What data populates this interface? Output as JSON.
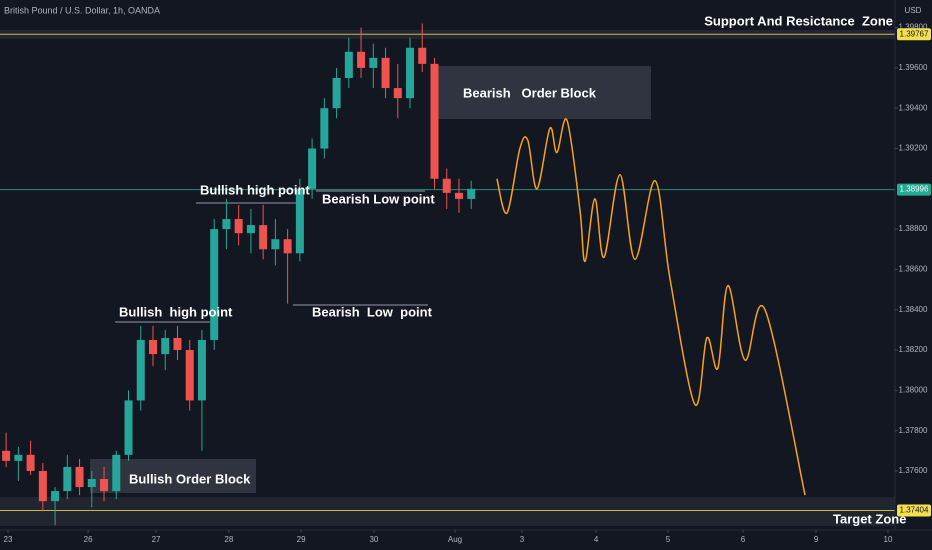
{
  "chart_data": {
    "type": "candlestick",
    "title": "British Pound / U.S. Dollar, 1h, OANDA",
    "y_axis_label": "USD",
    "up_color": "#26a69a",
    "down_color": "#ef5350",
    "x": [
      2,
      6,
      10,
      14,
      18,
      22,
      26,
      30,
      34,
      38,
      42,
      46,
      50,
      54,
      58,
      62,
      66,
      70,
      74,
      78,
      82,
      86,
      90,
      94,
      98,
      102,
      106,
      110,
      114,
      118,
      122,
      126,
      130,
      134,
      138,
      142,
      146,
      150,
      154
    ],
    "open": [
      1.377,
      1.3765,
      1.3768,
      1.376,
      1.3745,
      1.375,
      1.3762,
      1.3752,
      1.3756,
      1.375,
      1.3768,
      1.3795,
      1.3825,
      1.3818,
      1.3826,
      1.382,
      1.3795,
      1.3825,
      1.388,
      1.3885,
      1.3878,
      1.3882,
      1.387,
      1.3875,
      1.3868,
      1.39,
      1.392,
      1.394,
      1.3955,
      1.3968,
      1.396,
      1.3965,
      1.395,
      1.3945,
      1.397,
      1.3962,
      1.3905,
      1.3898,
      1.3895
    ],
    "high": [
      1.3779,
      1.3772,
      1.3775,
      1.3764,
      1.3752,
      1.3768,
      1.3766,
      1.376,
      1.3762,
      1.377,
      1.38,
      1.3832,
      1.3832,
      1.383,
      1.3832,
      1.3825,
      1.383,
      1.3885,
      1.3895,
      1.3892,
      1.389,
      1.3892,
      1.3885,
      1.388,
      1.3905,
      1.3925,
      1.3945,
      1.396,
      1.3975,
      1.398,
      1.3972,
      1.397,
      1.3962,
      1.3975,
      1.3982,
      1.3965,
      1.391,
      1.3905,
      1.3904
    ],
    "low": [
      1.3762,
      1.3755,
      1.3758,
      1.374,
      1.3733,
      1.3746,
      1.3748,
      1.3742,
      1.3745,
      1.3746,
      1.3765,
      1.379,
      1.3812,
      1.381,
      1.3815,
      1.379,
      1.377,
      1.382,
      1.387,
      1.3872,
      1.3868,
      1.3865,
      1.3862,
      1.3843,
      1.3864,
      1.3895,
      1.3915,
      1.3935,
      1.395,
      1.3955,
      1.395,
      1.3945,
      1.3935,
      1.394,
      1.3958,
      1.39,
      1.389,
      1.3888,
      1.389
    ],
    "close": [
      1.3765,
      1.3768,
      1.376,
      1.3745,
      1.375,
      1.3762,
      1.3752,
      1.3756,
      1.375,
      1.3768,
      1.3795,
      1.3825,
      1.3818,
      1.3826,
      1.382,
      1.3795,
      1.3825,
      1.388,
      1.3885,
      1.3878,
      1.3882,
      1.387,
      1.3875,
      1.3868,
      1.39,
      1.392,
      1.394,
      1.3955,
      1.3968,
      1.396,
      1.3965,
      1.395,
      1.3945,
      1.397,
      1.3962,
      1.3905,
      1.3898,
      1.3895,
      1.39
    ],
    "projection": {
      "type": "line",
      "color": "#f7a21b",
      "x": [
        162.4,
        165.7,
        169.9,
        172.5,
        175.5,
        179.7,
        182,
        185.3,
        189.5,
        191.2,
        194.4,
        197.4,
        202.6,
        207.5,
        214.1,
        219,
        227.1,
        231,
        234.6,
        237.9,
        243.5,
        250,
        263.1
      ],
      "values": [
        1.3905,
        1.3888,
        1.392,
        1.3924,
        1.39,
        1.393,
        1.3918,
        1.3934,
        1.389,
        1.3864,
        1.3895,
        1.3866,
        1.3907,
        1.3865,
        1.3904,
        1.3855,
        1.3793,
        1.3826,
        1.3811,
        1.3852,
        1.3815,
        1.384,
        1.3748
      ]
    },
    "price_lines": [
      {
        "value": 1.39767,
        "label": "1.39767",
        "color": "#f4e04d"
      },
      {
        "value": 1.38996,
        "label": "1.38996",
        "color": "#22ab94"
      },
      {
        "value": 1.37404,
        "label": "1.37404",
        "color": "#f4e04d"
      }
    ],
    "annotations": [
      "Support And Resictance  Zone",
      "Bearish   Order Block",
      "Bullish high point",
      "Bearish Low point",
      "Bullish  high point",
      "Bearish  Low  point",
      "Bullish Order Block",
      "Target Zone"
    ],
    "xlim": [
      0,
      292.5
    ],
    "ylim": [
      1.37307,
      1.39937
    ],
    "xticks": [
      {
        "value": 2.6,
        "label": "23"
      },
      {
        "value": 28.8,
        "label": "26"
      },
      {
        "value": 51,
        "label": "27"
      },
      {
        "value": 74.8,
        "label": "28"
      },
      {
        "value": 98.4,
        "label": "29"
      },
      {
        "value": 122.2,
        "label": "30"
      },
      {
        "value": 148.7,
        "label": "Aug"
      },
      {
        "value": 170.6,
        "label": "3"
      },
      {
        "value": 194.8,
        "label": "4"
      },
      {
        "value": 218.3,
        "label": "5"
      },
      {
        "value": 242.8,
        "label": "6"
      },
      {
        "value": 266.7,
        "label": "9"
      },
      {
        "value": 290.2,
        "label": "10"
      }
    ],
    "yticks": [
      {
        "value": 1.376,
        "label": "1.37600"
      },
      {
        "value": 1.378,
        "label": "1.37800"
      },
      {
        "value": 1.38,
        "label": "1.38000"
      },
      {
        "value": 1.382,
        "label": "1.38200"
      },
      {
        "value": 1.384,
        "label": "1.38400"
      },
      {
        "value": 1.386,
        "label": "1.38600"
      },
      {
        "value": 1.388,
        "label": "1.38800"
      },
      {
        "value": 1.392,
        "label": "1.39200"
      },
      {
        "value": 1.394,
        "label": "1.39400"
      },
      {
        "value": 1.396,
        "label": "1.39600"
      },
      {
        "value": 1.398,
        "label": "1.39800"
      }
    ],
    "grid": false
  }
}
